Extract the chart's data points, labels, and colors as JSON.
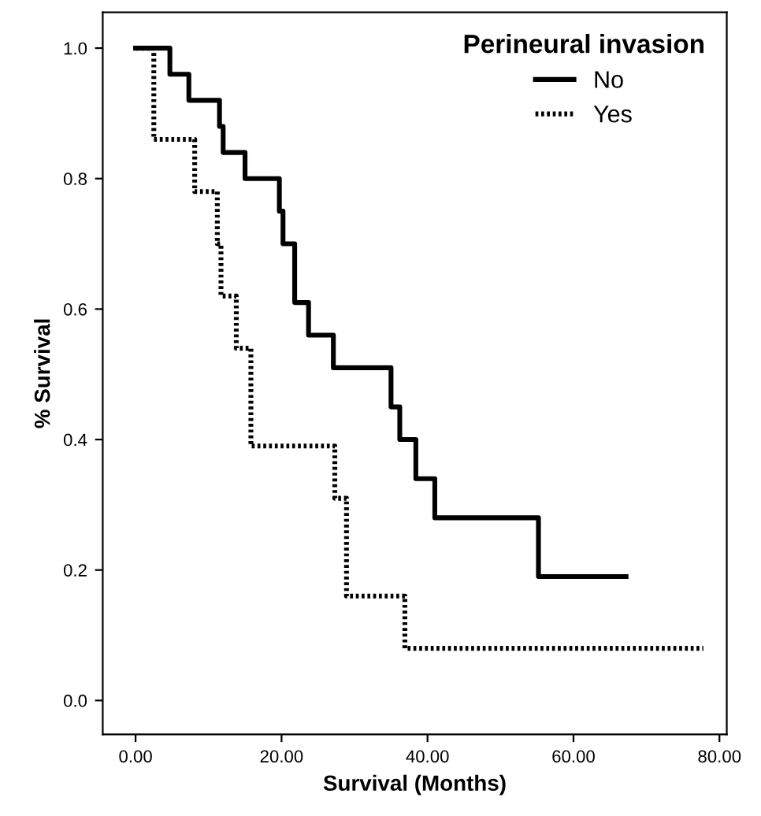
{
  "chart_data": {
    "type": "step",
    "xlabel": "Survival (Months)",
    "ylabel": "% Survival",
    "legend_title": "Perineural invasion",
    "legend": "top right",
    "grid": false,
    "xlim": [
      -4.5,
      81
    ],
    "xticks": [
      {
        "value": 0,
        "label": "0.00"
      },
      {
        "value": 20,
        "label": "20.00"
      },
      {
        "value": 40,
        "label": "40.00"
      },
      {
        "value": 60,
        "label": "60.00"
      },
      {
        "value": 80,
        "label": "80.00"
      }
    ],
    "ylim": [
      -0.052,
      1.055
    ],
    "yticks": [
      {
        "value": 0,
        "label": "0.0"
      },
      {
        "value": 0.2,
        "label": "0.2"
      },
      {
        "value": 0.4,
        "label": "0.4"
      },
      {
        "value": 0.6,
        "label": "0.6"
      },
      {
        "value": 0.8,
        "label": "0.8"
      },
      {
        "value": 1.0,
        "label": "1.0"
      }
    ],
    "series": [
      {
        "name": "No",
        "color": "#000000",
        "line_style": "solid",
        "x": [
          0,
          4.7,
          7.3,
          11.5,
          12.0,
          15.0,
          19.7,
          20.2,
          21.8,
          23.7,
          27.1,
          35.0,
          36.2,
          38.4,
          41.0,
          55.2,
          67.2
        ],
        "values": [
          1.0,
          0.96,
          0.92,
          0.88,
          0.84,
          0.8,
          0.75,
          0.7,
          0.61,
          0.56,
          0.51,
          0.45,
          0.4,
          0.34,
          0.28,
          0.19,
          0.19
        ]
      },
      {
        "name": "Yes",
        "color": "#000000",
        "line_style": "dotted",
        "x": [
          0,
          2.5,
          8.1,
          11.2,
          11.7,
          13.8,
          15.8,
          27.3,
          28.9,
          36.9,
          77.8
        ],
        "values": [
          1.0,
          0.86,
          0.78,
          0.7,
          0.62,
          0.54,
          0.39,
          0.31,
          0.16,
          0.08,
          0.08
        ]
      }
    ]
  }
}
